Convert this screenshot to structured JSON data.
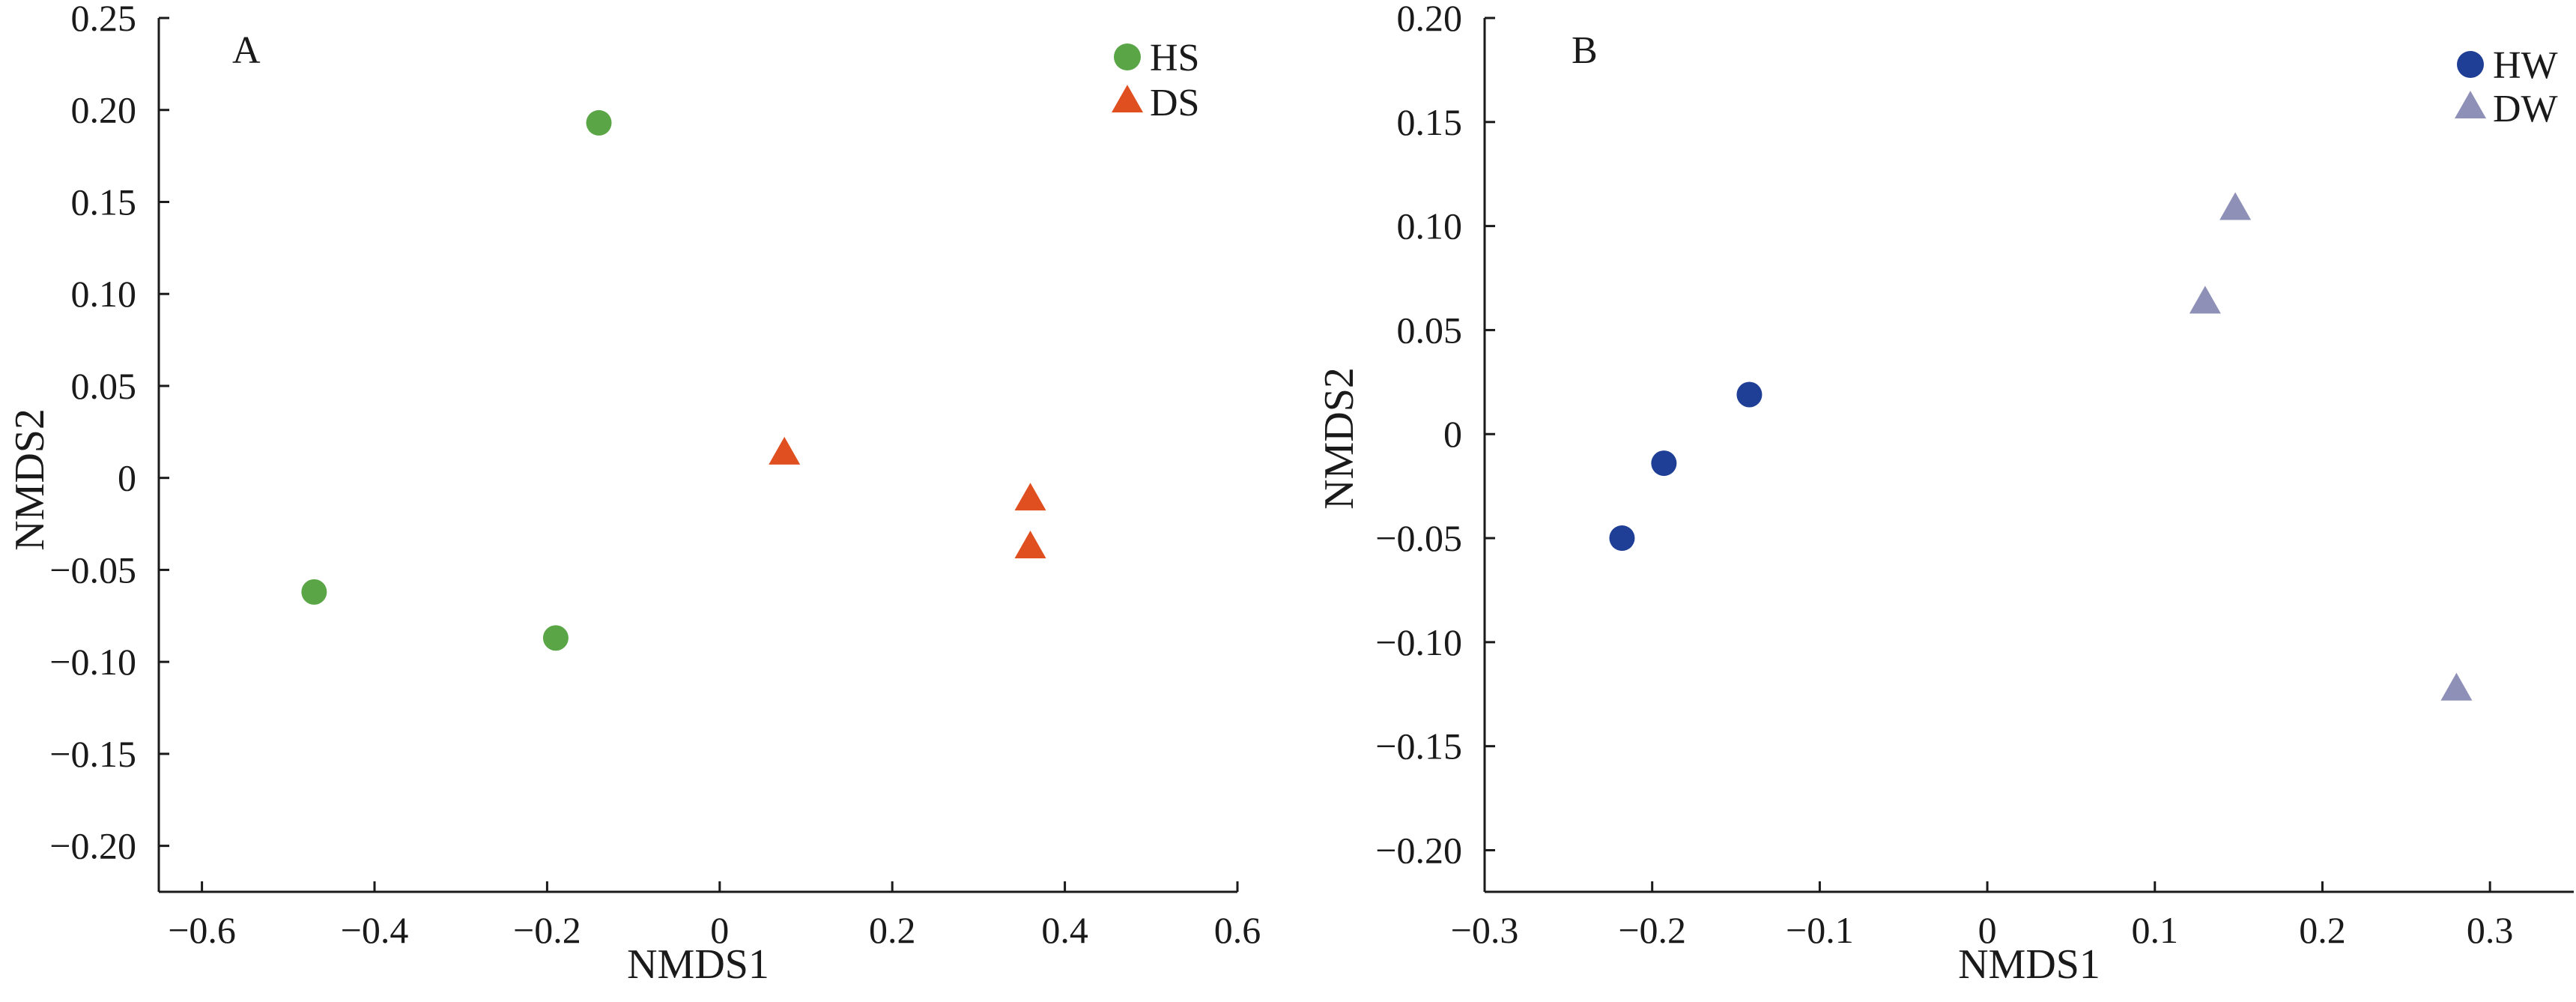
{
  "chart_data": [
    {
      "type": "scatter",
      "panel_label": "A",
      "xlabel": "NMDS1",
      "ylabel": "NMDS2",
      "xlim": [
        -0.65,
        0.6
      ],
      "ylim": [
        -0.225,
        0.25
      ],
      "xticks": [
        -0.6,
        -0.4,
        -0.2,
        0,
        0.2,
        0.4,
        0.6
      ],
      "xtick_labels": [
        "−0.6",
        "−0.4",
        "−0.2",
        "0",
        "0.2",
        "0.4",
        "0.6"
      ],
      "yticks": [
        0.25,
        0.2,
        0.15,
        0.1,
        0.05,
        0,
        -0.05,
        -0.1,
        -0.15,
        -0.2
      ],
      "ytick_labels": [
        "0.25",
        "0.20",
        "0.15",
        "0.10",
        "0.05",
        "0",
        "−0.05",
        "−0.10",
        "−0.15",
        "−0.20"
      ],
      "grid": false,
      "legend_position": "top-right",
      "series": [
        {
          "name": "HS",
          "marker": "circle",
          "color": "#5aa646",
          "points": [
            [
              -0.14,
              0.193
            ],
            [
              -0.47,
              -0.062
            ],
            [
              -0.19,
              -0.087
            ]
          ]
        },
        {
          "name": "DS",
          "marker": "triangle",
          "color": "#e04f1f",
          "points": [
            [
              0.075,
              0.013
            ],
            [
              0.36,
              -0.012
            ],
            [
              0.36,
              -0.038
            ]
          ]
        }
      ]
    },
    {
      "type": "scatter",
      "panel_label": "B",
      "xlabel": "NMDS1",
      "ylabel": "NMDS2",
      "xlim": [
        -0.3,
        0.35
      ],
      "ylim": [
        -0.22,
        0.2
      ],
      "xticks": [
        -0.3,
        -0.2,
        -0.1,
        0,
        0.1,
        0.2,
        0.3
      ],
      "xtick_labels": [
        "−0.3",
        "−0.2",
        "−0.1",
        "0",
        "0.1",
        "0.2",
        "0.3"
      ],
      "yticks": [
        0.2,
        0.15,
        0.1,
        0.05,
        0,
        -0.05,
        -0.1,
        -0.15,
        -0.2
      ],
      "ytick_labels": [
        "0.20",
        "0.15",
        "0.10",
        "0.05",
        "0",
        "−0.05",
        "−0.10",
        "−0.15",
        "−0.20"
      ],
      "grid": false,
      "legend_position": "top-right",
      "series": [
        {
          "name": "HW",
          "marker": "circle",
          "color": "#1f3f96",
          "points": [
            [
              -0.142,
              0.019
            ],
            [
              -0.193,
              -0.014
            ],
            [
              -0.218,
              -0.05
            ]
          ]
        },
        {
          "name": "DW",
          "marker": "triangle",
          "color": "#8e90b8",
          "points": [
            [
              0.148,
              0.108
            ],
            [
              0.13,
              0.063
            ],
            [
              0.28,
              -0.123
            ]
          ]
        }
      ]
    }
  ]
}
